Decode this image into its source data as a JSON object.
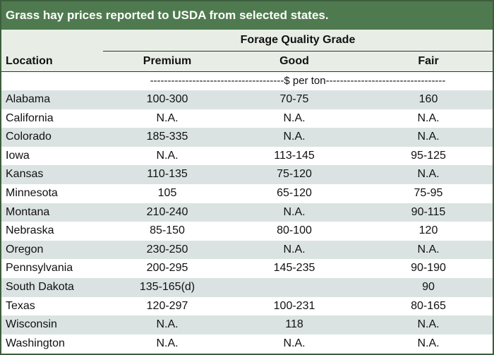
{
  "title": "Grass hay prices reported to USDA from selected states.",
  "header": {
    "location": "Location",
    "grade_group": "Forage Quality Grade",
    "premium": "Premium",
    "good": "Good",
    "fair": "Fair"
  },
  "units": "--------------------------------------$ per ton----------------------------------",
  "rows": [
    {
      "location": "Alabama",
      "premium": "100-300",
      "good": "70-75",
      "fair": "160"
    },
    {
      "location": "California",
      "premium": "N.A.",
      "good": "N.A.",
      "fair": "N.A."
    },
    {
      "location": "Colorado",
      "premium": "185-335",
      "good": "N.A.",
      "fair": "N.A."
    },
    {
      "location": "Iowa",
      "premium": "N.A.",
      "good": "113-145",
      "fair": "95-125"
    },
    {
      "location": "Kansas",
      "premium": "110-135",
      "good": "75-120",
      "fair": "N.A."
    },
    {
      "location": "Minnesota",
      "premium": "105",
      "good": "65-120",
      "fair": "75-95"
    },
    {
      "location": "Montana",
      "premium": "210-240",
      "good": "N.A.",
      "fair": "90-115"
    },
    {
      "location": "Nebraska",
      "premium": "85-150",
      "good": "80-100",
      "fair": "120"
    },
    {
      "location": "Oregon",
      "premium": "230-250",
      "good": "N.A.",
      "fair": "N.A."
    },
    {
      "location": "Pennsylvania",
      "premium": "200-295",
      "good": "145-235",
      "fair": "90-190"
    },
    {
      "location": "South Dakota",
      "premium": "135-165(d)",
      "good": "",
      "fair": "90"
    },
    {
      "location": "Texas",
      "premium": "120-297",
      "good": "100-231",
      "fair": "80-165"
    },
    {
      "location": "Wisconsin",
      "premium": "N.A.",
      "good": "118",
      "fair": "N.A."
    },
    {
      "location": "Washington",
      "premium": "N.A.",
      "good": "N.A.",
      "fair": "N.A."
    }
  ],
  "colors": {
    "title_bg": "#4f7a4f",
    "header_bg": "#e8eee6",
    "stripe": "#dbe3e2",
    "border": "#3c5e3c"
  }
}
